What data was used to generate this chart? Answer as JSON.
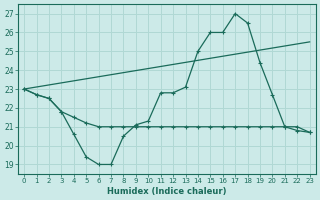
{
  "xlabel": "Humidex (Indice chaleur)",
  "bg_color": "#cceae8",
  "line_color": "#1a6b5a",
  "grid_color": "#b0d8d4",
  "xlim": [
    -0.5,
    23.5
  ],
  "ylim": [
    18.5,
    27.5
  ],
  "yticks": [
    19,
    20,
    21,
    22,
    23,
    24,
    25,
    26,
    27
  ],
  "xticks": [
    0,
    1,
    2,
    3,
    4,
    5,
    6,
    7,
    8,
    9,
    10,
    11,
    12,
    13,
    14,
    15,
    16,
    17,
    18,
    19,
    20,
    21,
    22,
    23
  ],
  "line1_x": [
    0,
    1,
    2,
    3,
    4,
    5,
    6,
    7,
    8,
    9,
    10,
    11,
    12,
    13,
    14,
    15,
    16,
    17,
    18,
    19,
    20,
    21,
    22,
    23
  ],
  "line1_y": [
    23.0,
    22.7,
    22.5,
    21.8,
    20.6,
    19.4,
    19.0,
    19.0,
    20.5,
    21.1,
    21.3,
    22.8,
    22.8,
    23.1,
    25.0,
    26.0,
    26.0,
    27.0,
    26.5,
    24.4,
    22.7,
    21.0,
    20.8,
    20.7
  ],
  "line2_x": [
    0,
    1,
    2,
    3,
    4,
    5,
    6,
    7,
    8,
    9,
    10,
    11,
    12,
    13,
    14,
    15,
    16,
    17,
    18,
    19,
    20,
    21,
    22,
    23
  ],
  "line2_y": [
    23.0,
    22.7,
    22.5,
    21.8,
    21.5,
    21.2,
    21.0,
    21.0,
    21.0,
    21.0,
    21.0,
    21.0,
    21.0,
    21.0,
    21.0,
    21.0,
    21.0,
    21.0,
    21.0,
    21.0,
    21.0,
    21.0,
    21.0,
    20.7
  ],
  "line3_x": [
    0,
    23
  ],
  "line3_y": [
    23.0,
    25.5
  ]
}
